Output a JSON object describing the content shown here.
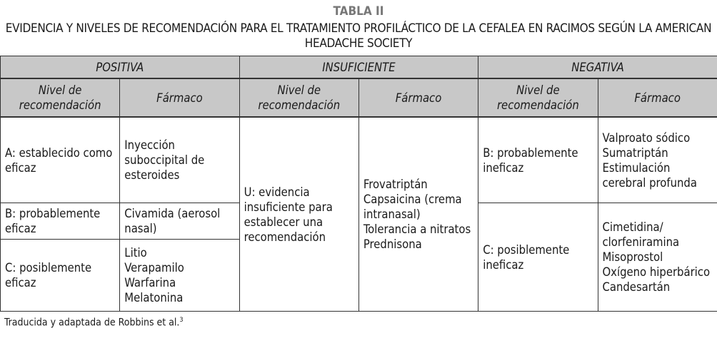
{
  "table_label": "TABLA II",
  "title": "EVIDENCIA Y NIVELES DE RECOMENDACIÓN PARA EL TRATAMIENTO PROFILÁCTICO DE LA CEFALEA EN RACIMOS SEGÚN LA AMERICAN HEADACHE SOCIETY",
  "groups": [
    "POSITIVA",
    "INSUFICIENTE",
    "NEGATIVA"
  ],
  "subheaders": {
    "level": "Nivel de recomendación",
    "drug": "Fármaco"
  },
  "positiva": [
    {
      "level": "A: establecido como eficaz",
      "drug": "Inyección suboccipital de esteroides"
    },
    {
      "level": "B: probablemente eficaz",
      "drug": "Civamida (aerosol nasal)"
    },
    {
      "level": "C: posiblemente eficaz",
      "drug": "Litio\nVerapamilo\nWarfarina\nMelatonina"
    }
  ],
  "insuficiente": {
    "level": "U: evidencia insuficiente para establecer una recomendación",
    "drug": "Frovatriptán\nCapsaicina (crema intranasal)\nTolerancia a nitratos\nPrednisona"
  },
  "negativa": [
    {
      "level": "B: probablemente ineficaz",
      "drug": "Valproato sódico\nSumatriptán\nEstimulación cerebral profunda"
    },
    {
      "level": "C: posiblemente ineficaz",
      "drug": "Cimetidina/ clorfeniramina\nMisoprostol\nOxígeno hiperbárico\nCandesartán"
    }
  ],
  "footer": {
    "text": "Traducida y adaptada de Robbins et al.",
    "ref": "3"
  }
}
